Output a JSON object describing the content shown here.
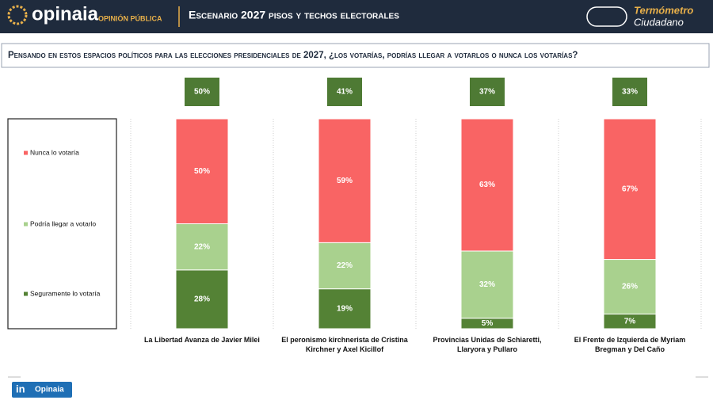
{
  "header": {
    "brand": "opinaia",
    "brand_sub": "OPINIÓN PÚBLICA",
    "title": "Escenario 2027 pisos y techos electorales",
    "badge_line1": "Termómetro",
    "badge_line2": "Ciudadano"
  },
  "question": "Pensando en estos espacios políticos para las elecciones presidenciales de 2027, ¿los votarías, podrías llegar a votarlos o nunca los votarías?",
  "chart_data": {
    "type": "bar",
    "stacked": true,
    "categories": [
      "La Libertad Avanza de Javier Milei",
      "El peronismo kirchnerista de Cristina Kirchner y Axel Kicillof",
      "Provincias Unidas de Schiaretti, Llaryora y Pullaro",
      "El Frente de Izquierda de Myriam Bregman y Del Caño"
    ],
    "ylim": [
      0,
      100
    ],
    "series": [
      {
        "name": "Seguramente lo votaría",
        "color": "#548235",
        "values": [
          28,
          19,
          5,
          7
        ],
        "value_labels": [
          "28%",
          "19%",
          "5%",
          "7%"
        ]
      },
      {
        "name": "Podría llegar a votarlo",
        "color": "#a9d18e",
        "values": [
          22,
          22,
          32,
          26
        ],
        "value_labels": [
          "22%",
          "22%",
          "32%",
          "26%"
        ]
      },
      {
        "name": "Nunca lo votaría",
        "color": "#f96464",
        "values": [
          50,
          59,
          63,
          67
        ],
        "value_labels": [
          "50%",
          "59%",
          "63%",
          "67%"
        ]
      }
    ],
    "ceiling": {
      "color": "#4e7a34",
      "values": [
        50,
        41,
        37,
        33
      ],
      "value_labels": [
        "50%",
        "41%",
        "37%",
        "33%"
      ]
    }
  },
  "footer": {
    "icon": "in",
    "label": "Opinaia"
  }
}
